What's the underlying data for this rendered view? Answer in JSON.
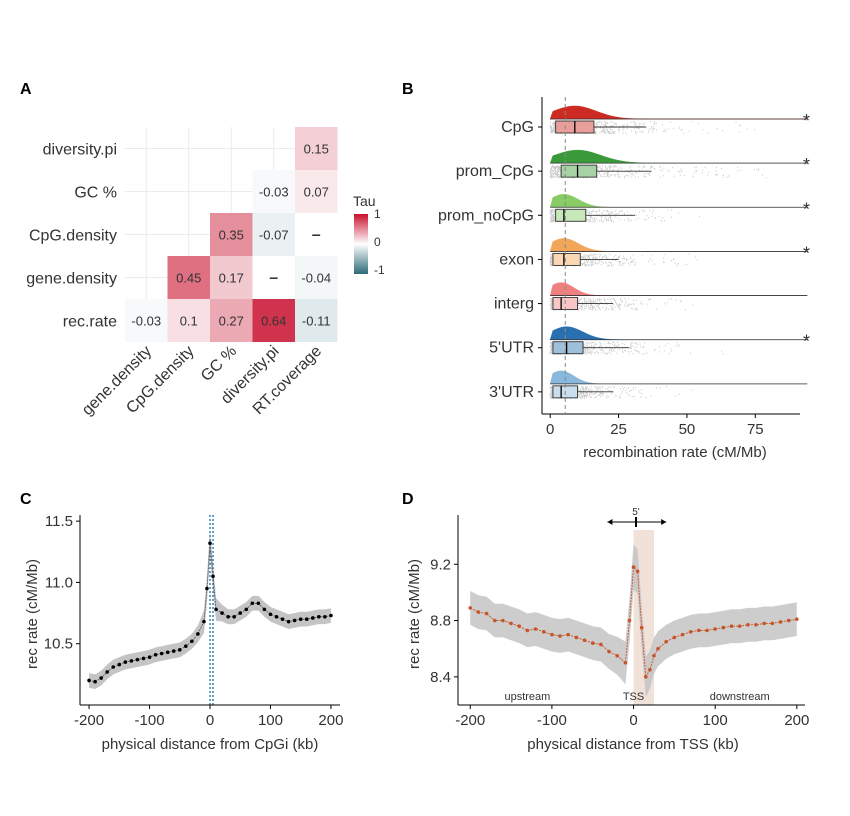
{
  "chart_data": [
    {
      "panel": "A",
      "type": "heatmap",
      "rows": [
        "diversity.pi",
        "GC %",
        "CpG.density",
        "gene.density",
        "rec.rate"
      ],
      "columns": [
        "gene.density",
        "CpG.density",
        "GC %",
        "diversity.pi",
        "RT.coverage"
      ],
      "cells": [
        {
          "row": "diversity.pi",
          "col": "RT.coverage",
          "value": 0.15,
          "label": "0.15"
        },
        {
          "row": "GC %",
          "col": "diversity.pi",
          "value": -0.03,
          "label": "-0.03"
        },
        {
          "row": "GC %",
          "col": "RT.coverage",
          "value": 0.07,
          "label": "0.07"
        },
        {
          "row": "CpG.density",
          "col": "GC %",
          "value": 0.35,
          "label": "0.35"
        },
        {
          "row": "CpG.density",
          "col": "diversity.pi",
          "value": -0.07,
          "label": "-0.07"
        },
        {
          "row": "CpG.density",
          "col": "RT.coverage",
          "value": 0,
          "label": "–"
        },
        {
          "row": "gene.density",
          "col": "CpG.density",
          "value": 0.45,
          "label": "0.45"
        },
        {
          "row": "gene.density",
          "col": "GC %",
          "value": 0.17,
          "label": "0.17"
        },
        {
          "row": "gene.density",
          "col": "diversity.pi",
          "value": 0,
          "label": "–"
        },
        {
          "row": "gene.density",
          "col": "RT.coverage",
          "value": -0.04,
          "label": "-0.04"
        },
        {
          "row": "rec.rate",
          "col": "gene.density",
          "value": -0.03,
          "label": "-0.03"
        },
        {
          "row": "rec.rate",
          "col": "CpG.density",
          "value": 0.1,
          "label": "0.1"
        },
        {
          "row": "rec.rate",
          "col": "GC %",
          "value": 0.27,
          "label": "0.27"
        },
        {
          "row": "rec.rate",
          "col": "diversity.pi",
          "value": 0.64,
          "label": "0.64"
        },
        {
          "row": "rec.rate",
          "col": "RT.coverage",
          "value": -0.11,
          "label": "-0.11"
        }
      ],
      "legend": {
        "title": "Tau",
        "ticks": [
          "1",
          "0",
          "-1"
        ],
        "range": [
          -1,
          1
        ],
        "colors": {
          "low": "#2b6b78",
          "mid": "#ffffff",
          "high": "#c8102e"
        }
      }
    },
    {
      "panel": "B",
      "type": "boxplot",
      "categories": [
        "CpG",
        "prom_CpG",
        "prom_noCpG",
        "exon",
        "interg",
        "5'UTR",
        "3'UTR"
      ],
      "colors": [
        "#cc2a22",
        "#3a9a3a",
        "#88cc66",
        "#f2a65a",
        "#f08080",
        "#2a70b0",
        "#88b8dc"
      ],
      "box_stats": [
        {
          "q1": 2,
          "median": 9,
          "q3": 16,
          "whisker_high": 35
        },
        {
          "q1": 4,
          "median": 10,
          "q3": 17,
          "whisker_high": 37
        },
        {
          "q1": 2,
          "median": 5,
          "q3": 13,
          "whisker_high": 31
        },
        {
          "q1": 1,
          "median": 5,
          "q3": 11,
          "whisker_high": 25
        },
        {
          "q1": 1,
          "median": 4,
          "q3": 10,
          "whisker_high": 23
        },
        {
          "q1": 1,
          "median": 6,
          "q3": 12,
          "whisker_high": 29
        },
        {
          "q1": 1,
          "median": 4,
          "q3": 10,
          "whisker_high": 23
        }
      ],
      "significant": [
        true,
        true,
        true,
        true,
        false,
        true,
        false
      ],
      "sig_symbol": "*",
      "reference_line": 5.5,
      "xlabel": "recombination rate (cM/Mb)",
      "xticks": [
        0,
        25,
        50,
        75
      ],
      "xlim": [
        -3,
        95
      ]
    },
    {
      "panel": "C",
      "type": "line",
      "xlabel": "physical distance from CpGi (kb)",
      "ylabel": "rec rate (cM/Mb)",
      "xticks": [
        -200,
        -100,
        0,
        100,
        200
      ],
      "yticks": [
        10.5,
        11.0,
        11.5
      ],
      "xlim": [
        -215,
        215
      ],
      "ylim": [
        10.0,
        11.55
      ],
      "vlines": [
        0,
        5
      ],
      "x": [
        -200,
        -190,
        -180,
        -170,
        -160,
        -150,
        -140,
        -130,
        -120,
        -110,
        -100,
        -90,
        -80,
        -70,
        -60,
        -50,
        -40,
        -30,
        -20,
        -10,
        -5,
        0,
        5,
        10,
        20,
        30,
        40,
        50,
        60,
        70,
        80,
        90,
        100,
        110,
        120,
        130,
        140,
        150,
        160,
        170,
        180,
        190,
        200
      ],
      "y": [
        10.2,
        10.19,
        10.22,
        10.27,
        10.31,
        10.33,
        10.35,
        10.36,
        10.37,
        10.38,
        10.39,
        10.41,
        10.42,
        10.43,
        10.44,
        10.45,
        10.48,
        10.52,
        10.58,
        10.68,
        10.95,
        11.32,
        11.05,
        10.78,
        10.75,
        10.72,
        10.72,
        10.75,
        10.78,
        10.83,
        10.83,
        10.78,
        10.74,
        10.72,
        10.7,
        10.68,
        10.69,
        10.7,
        10.7,
        10.71,
        10.72,
        10.72,
        10.73
      ]
    },
    {
      "panel": "D",
      "type": "line",
      "xlabel": "physical distance from TSS (kb)",
      "ylabel": "rec rate (cM/Mb)",
      "xticks": [
        -200,
        -100,
        0,
        100,
        200
      ],
      "yticks": [
        8.4,
        8.8,
        9.2
      ],
      "xlim": [
        -215,
        210
      ],
      "ylim": [
        8.2,
        9.55
      ],
      "highlight_region": [
        0,
        25
      ],
      "annotations": [
        "upstream",
        "TSS",
        "downstream",
        "5'"
      ],
      "x": [
        -200,
        -190,
        -180,
        -170,
        -160,
        -150,
        -140,
        -130,
        -120,
        -110,
        -100,
        -90,
        -80,
        -70,
        -60,
        -50,
        -40,
        -30,
        -20,
        -10,
        -5,
        0,
        5,
        10,
        15,
        20,
        25,
        30,
        40,
        50,
        60,
        70,
        80,
        90,
        100,
        110,
        120,
        130,
        140,
        150,
        160,
        170,
        180,
        190,
        200
      ],
      "y": [
        8.89,
        8.86,
        8.85,
        8.8,
        8.8,
        8.78,
        8.76,
        8.73,
        8.74,
        8.72,
        8.7,
        8.69,
        8.7,
        8.68,
        8.66,
        8.64,
        8.63,
        8.58,
        8.55,
        8.5,
        8.8,
        9.18,
        9.15,
        8.75,
        8.4,
        8.45,
        8.55,
        8.6,
        8.65,
        8.68,
        8.7,
        8.72,
        8.73,
        8.73,
        8.74,
        8.75,
        8.76,
        8.76,
        8.77,
        8.77,
        8.78,
        8.78,
        8.79,
        8.8,
        8.81
      ]
    }
  ]
}
